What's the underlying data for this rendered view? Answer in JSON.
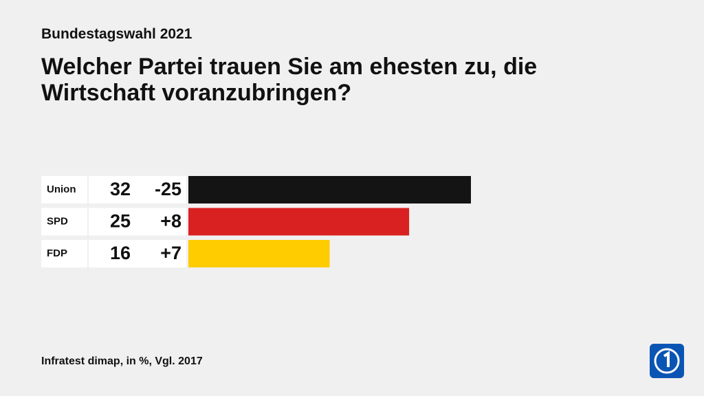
{
  "chart_data": {
    "type": "bar",
    "supertitle": "Bundestagswahl 2021",
    "title": "Welcher Partei trauen Sie am ehesten zu, die Wirtschaft voranzubringen?",
    "categories": [
      "Union",
      "SPD",
      "FDP"
    ],
    "values": [
      32,
      25,
      16
    ],
    "colors": [
      "#141414",
      "#d92121",
      "#ffcc00"
    ],
    "changes": {
      "values": [
        -25,
        8,
        7
      ],
      "value_labels": [
        "-25",
        "+8",
        "+7"
      ]
    },
    "source": "Infratest dimap, in %, Vgl. 2017"
  }
}
